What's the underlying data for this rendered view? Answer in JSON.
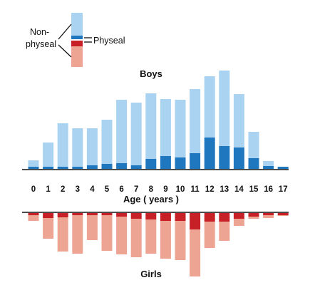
{
  "legend": {
    "nonphyseal_line1": "Non-",
    "nonphyseal_line2": "physeal",
    "physeal": "Physeal"
  },
  "colors": {
    "boys_nonphyseal": "#a9d3f1",
    "boys_physeal": "#1f78bf",
    "girls_nonphyseal": "#eea493",
    "girls_physeal": "#c82027",
    "axis": "#111111"
  },
  "chart_data": {
    "type": "bar",
    "stacked": true,
    "xlabel": "Age ( years )",
    "categories": [
      "0",
      "1",
      "2",
      "3",
      "4",
      "5",
      "6",
      "7",
      "8",
      "9",
      "10",
      "11",
      "12",
      "13",
      "14",
      "15",
      "16",
      "17"
    ],
    "panels": [
      {
        "title": "Boys",
        "direction": "up",
        "series": [
          {
            "name": "Physeal",
            "values": [
              3,
              3,
              3,
              3,
              5,
              7,
              8,
              5,
              14,
              18,
              16,
              22,
              44,
              32,
              30,
              15,
              4,
              3
            ]
          },
          {
            "name": "Non-physeal",
            "values": [
              9,
              34,
              61,
              54,
              52,
              62,
              89,
              88,
              92,
              80,
              81,
              90,
              86,
              106,
              75,
              37,
              7,
              0
            ]
          }
        ]
      },
      {
        "title": "Girls",
        "direction": "down",
        "series": [
          {
            "name": "Physeal",
            "values": [
              3,
              7,
              6,
              3,
              3,
              3,
              5,
              8,
              9,
              11,
              11,
              23,
              12,
              12,
              8,
              5,
              3,
              3
            ]
          },
          {
            "name": "Non-physeal",
            "values": [
              8,
              29,
              48,
              54,
              35,
              50,
              53,
              54,
              48,
              53,
              55,
              66,
              37,
              27,
              10,
              3,
              4,
              1
            ]
          }
        ]
      }
    ]
  }
}
